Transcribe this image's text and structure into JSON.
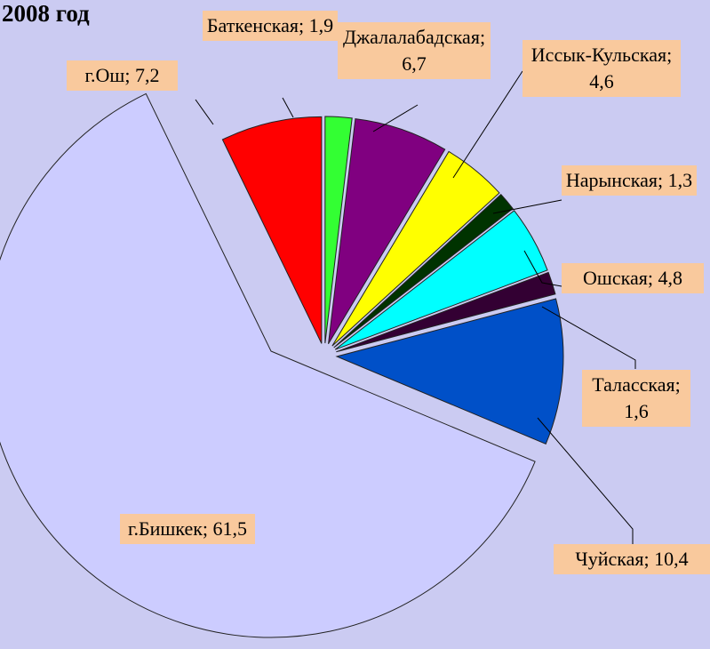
{
  "chart_data": {
    "type": "pie",
    "title": "2008 год",
    "categories": [
      "г.Ош",
      "Баткенская",
      "Джалалабадская",
      "Иссык-Кульская",
      "Нарынская",
      "Ошская",
      "Таласская",
      "Чуйская",
      "г.Бишкек"
    ],
    "values": [
      7.2,
      1.9,
      6.7,
      4.6,
      1.3,
      4.8,
      1.6,
      10.4,
      61.5
    ],
    "value_labels": [
      "7,2",
      "1,9",
      "6,7",
      "4,6",
      "1,3",
      "4,8",
      "1,6",
      "10,4",
      "61,5"
    ],
    "colors": [
      "#ff0000",
      "#33ff33",
      "#800080",
      "#ffff00",
      "#003300",
      "#00ffff",
      "#330033",
      "#0050c8",
      "#ccccff"
    ]
  }
}
